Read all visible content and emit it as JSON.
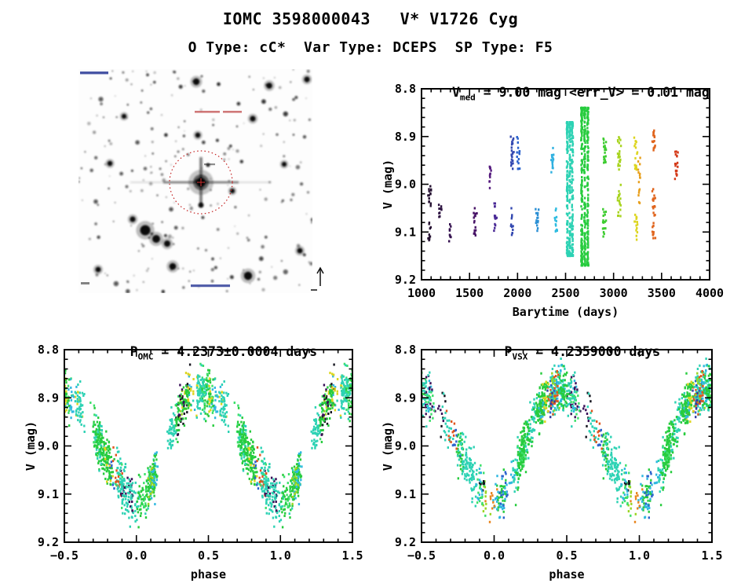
{
  "page": {
    "title": "IOMC 3598000043   V* V1726 Cyg",
    "subtitle": "O Type: cC*  Var Type: DCEPS  SP Type: F5"
  },
  "finder_chart": {
    "target_circle_color": "#c42222",
    "target_cross_color": "#d03030",
    "coord_annotation_color": "#b22222",
    "corner_annotation_color": "#1a2a8e"
  },
  "chart_data": [
    {
      "id": "lightcurve-vs-time",
      "type": "scatter",
      "title_parts": {
        "base": "V",
        "sub": "med",
        "rest": " = 9.00 mag <err_V> = 0.01 mag"
      },
      "xlabel": "Barytime (days)",
      "ylabel": "V (mag)",
      "xlim": [
        1000,
        4000
      ],
      "ylim": [
        8.8,
        9.2
      ],
      "y_axis_inverted_magnitudes": true,
      "xticks": {
        "values": [
          1000,
          1500,
          2000,
          2500,
          3000,
          3500,
          4000
        ],
        "labels": [
          "1000",
          "1500",
          "2000",
          "2500",
          "3000",
          "3500",
          "4000"
        ]
      },
      "yticks": {
        "values": [
          8.8,
          8.9,
          9.0,
          9.1,
          9.2
        ],
        "labels": [
          "8.8",
          "8.9",
          "9.0",
          "9.1",
          "9.2"
        ]
      },
      "minor_x": 100,
      "minor_y": 0.02,
      "seed": 5,
      "point_color_meaning": "observation epoch (rainbow: early=dark purple, late=red)",
      "clusters": [
        {
          "t": 1085,
          "w": 34,
          "color": "#241030",
          "segments": [
            [
              9.0,
              9.05,
              14
            ],
            [
              9.08,
              9.12,
              10
            ]
          ]
        },
        {
          "t": 1195,
          "w": 26,
          "color": "#2c1240",
          "segments": [
            [
              9.03,
              9.07,
              10
            ]
          ]
        },
        {
          "t": 1300,
          "w": 26,
          "color": "#33104e",
          "segments": [
            [
              9.08,
              9.12,
              10
            ]
          ]
        },
        {
          "t": 1560,
          "w": 30,
          "color": "#471366",
          "segments": [
            [
              9.05,
              9.11,
              16
            ]
          ]
        },
        {
          "t": 1715,
          "w": 28,
          "color": "#551a7e",
          "segments": [
            [
              8.96,
              9.01,
              12
            ]
          ]
        },
        {
          "t": 1768,
          "w": 26,
          "color": "#4a2a96",
          "segments": [
            [
              9.04,
              9.1,
              14
            ]
          ]
        },
        {
          "t": 1945,
          "w": 30,
          "color": "#3348b0",
          "segments": [
            [
              8.9,
              8.97,
              22
            ],
            [
              9.05,
              9.11,
              12
            ]
          ]
        },
        {
          "t": 2008,
          "w": 26,
          "color": "#2a62cc",
          "segments": [
            [
              8.9,
              8.97,
              16
            ]
          ]
        },
        {
          "t": 2205,
          "w": 28,
          "color": "#2b8fd4",
          "segments": [
            [
              9.05,
              9.1,
              14
            ]
          ]
        },
        {
          "t": 2360,
          "w": 26,
          "color": "#2fb0e0",
          "segments": [
            [
              8.92,
              8.98,
              16
            ]
          ]
        },
        {
          "t": 2402,
          "w": 24,
          "color": "#2fbce0",
          "segments": [
            [
              9.05,
              9.1,
              12
            ]
          ]
        },
        {
          "t": 2545,
          "w": 80,
          "color": "#2dd2b4",
          "segments": [
            [
              8.87,
              9.15,
              340
            ]
          ]
        },
        {
          "t": 2700,
          "w": 95,
          "color": "#27cc3e",
          "segments": [
            [
              8.84,
              9.17,
              440
            ]
          ]
        },
        {
          "t": 2905,
          "w": 32,
          "color": "#3ecc30",
          "segments": [
            [
              8.9,
              8.96,
              20
            ],
            [
              9.05,
              9.11,
              16
            ]
          ]
        },
        {
          "t": 3060,
          "w": 32,
          "color": "#a8d420",
          "segments": [
            [
              8.9,
              8.97,
              22
            ],
            [
              9.0,
              9.07,
              18
            ]
          ]
        },
        {
          "t": 3232,
          "w": 30,
          "color": "#ddd51e",
          "segments": [
            [
              8.9,
              8.97,
              18
            ],
            [
              9.06,
              9.12,
              14
            ]
          ]
        },
        {
          "t": 3270,
          "w": 22,
          "color": "#e8a01e",
          "segments": [
            [
              8.93,
              9.04,
              16
            ]
          ]
        },
        {
          "t": 3420,
          "w": 30,
          "color": "#e0641c",
          "segments": [
            [
              8.88,
              8.93,
              16
            ],
            [
              9.01,
              9.07,
              16
            ],
            [
              9.08,
              9.12,
              10
            ]
          ]
        },
        {
          "t": 3655,
          "w": 26,
          "color": "#d43b1a",
          "segments": [
            [
              8.93,
              8.99,
              18
            ]
          ]
        }
      ]
    },
    {
      "id": "phase-folded-omc",
      "type": "scatter",
      "title_parts": {
        "base": "P",
        "sub": "OMC",
        "rest": " = 4.2373±0.0004 days"
      },
      "xlabel": "phase",
      "ylabel": "V (mag)",
      "xlim": [
        -0.5,
        1.5
      ],
      "ylim": [
        8.8,
        9.2
      ],
      "y_axis_inverted_magnitudes": true,
      "xticks": {
        "values": [
          -0.5,
          0.0,
          0.5,
          1.0,
          1.5
        ],
        "labels": [
          "−0.5",
          "0.0",
          "0.5",
          "1.0",
          "1.5"
        ]
      },
      "yticks": {
        "values": [
          8.8,
          8.9,
          9.0,
          9.1,
          9.2
        ],
        "labels": [
          "8.8",
          "8.9",
          "9.0",
          "9.1",
          "9.2"
        ]
      },
      "minor_x": 0.1,
      "minor_y": 0.02,
      "seed": 11,
      "scatter_model": {
        "n_epochs": 46,
        "base_n": 15,
        "phase_jitter": 0.016,
        "noise": 0.023,
        "mean_curve": {
          "phase": [
            0.0,
            0.05,
            0.1,
            0.15,
            0.2,
            0.25,
            0.3,
            0.35,
            0.4,
            0.45,
            0.5,
            0.55,
            0.6,
            0.65,
            0.7,
            0.75,
            0.8,
            0.85,
            0.9,
            0.95,
            1.0
          ],
          "v": [
            9.115,
            9.105,
            9.08,
            9.05,
            9.01,
            8.965,
            8.925,
            8.9,
            8.888,
            8.885,
            8.89,
            8.9,
            8.915,
            8.94,
            8.97,
            9.0,
            9.03,
            9.06,
            9.085,
            9.105,
            9.115
          ]
        },
        "palette": [
          {
            "color": "#2dd2b4",
            "weight": 0.22,
            "n_scale": 2.2
          },
          {
            "color": "#27cc3e",
            "weight": 0.22,
            "n_scale": 2.4
          },
          {
            "color": "#3ce06a",
            "weight": 0.08,
            "n_scale": 1.2
          },
          {
            "color": "#2fb8e0",
            "weight": 0.1,
            "n_scale": 1.0
          },
          {
            "color": "#9ad522",
            "weight": 0.05,
            "n_scale": 0.8
          },
          {
            "color": "#ddd51e",
            "weight": 0.04,
            "n_scale": 0.8
          },
          {
            "color": "#e8851e",
            "weight": 0.05,
            "n_scale": 0.9
          },
          {
            "color": "#e0551c",
            "weight": 0.04,
            "n_scale": 0.9
          },
          {
            "color": "#d43b1a",
            "weight": 0.02,
            "n_scale": 0.6
          },
          {
            "color": "#2a62cc",
            "weight": 0.04,
            "n_scale": 0.7
          },
          {
            "color": "#333a9e",
            "weight": 0.03,
            "n_scale": 0.7
          },
          {
            "color": "#3a1058",
            "weight": 0.03,
            "n_scale": 0.7
          },
          {
            "color": "#14141e",
            "weight": 0.03,
            "n_scale": 0.6
          }
        ]
      }
    },
    {
      "id": "phase-folded-vsx",
      "type": "scatter",
      "title_parts": {
        "base": "P",
        "sub": "VSX",
        "rest": " = 4.2359000 days"
      },
      "xlabel": "phase",
      "ylabel": "V (mag)",
      "xlim": [
        -0.5,
        1.5
      ],
      "ylim": [
        8.8,
        9.2
      ],
      "y_axis_inverted_magnitudes": true,
      "xticks": {
        "values": [
          -0.5,
          0.0,
          0.5,
          1.0,
          1.5
        ],
        "labels": [
          "−0.5",
          "0.0",
          "0.5",
          "1.0",
          "1.5"
        ]
      },
      "yticks": {
        "values": [
          8.8,
          8.9,
          9.0,
          9.1,
          9.2
        ],
        "labels": [
          "8.8",
          "8.9",
          "9.0",
          "9.1",
          "9.2"
        ]
      },
      "minor_x": 0.1,
      "minor_y": 0.02,
      "seed": 29,
      "scatter_model": {
        "n_epochs": 46,
        "base_n": 15,
        "phase_jitter": 0.016,
        "noise": 0.023,
        "mean_curve": {
          "phase": [
            0.0,
            0.05,
            0.1,
            0.15,
            0.2,
            0.25,
            0.3,
            0.35,
            0.4,
            0.45,
            0.5,
            0.55,
            0.6,
            0.65,
            0.7,
            0.75,
            0.8,
            0.85,
            0.9,
            0.95,
            1.0
          ],
          "v": [
            9.115,
            9.105,
            9.08,
            9.05,
            9.01,
            8.965,
            8.925,
            8.9,
            8.888,
            8.885,
            8.89,
            8.9,
            8.915,
            8.94,
            8.97,
            9.0,
            9.03,
            9.06,
            9.085,
            9.105,
            9.115
          ]
        },
        "palette": [
          {
            "color": "#2dd2b4",
            "weight": 0.22,
            "n_scale": 2.2
          },
          {
            "color": "#27cc3e",
            "weight": 0.22,
            "n_scale": 2.4
          },
          {
            "color": "#3ce06a",
            "weight": 0.08,
            "n_scale": 1.2
          },
          {
            "color": "#2fb8e0",
            "weight": 0.1,
            "n_scale": 1.0
          },
          {
            "color": "#9ad522",
            "weight": 0.05,
            "n_scale": 0.8
          },
          {
            "color": "#ddd51e",
            "weight": 0.04,
            "n_scale": 0.8
          },
          {
            "color": "#e8851e",
            "weight": 0.05,
            "n_scale": 0.9
          },
          {
            "color": "#e0551c",
            "weight": 0.04,
            "n_scale": 0.9
          },
          {
            "color": "#d43b1a",
            "weight": 0.02,
            "n_scale": 0.6
          },
          {
            "color": "#2a62cc",
            "weight": 0.04,
            "n_scale": 0.7
          },
          {
            "color": "#333a9e",
            "weight": 0.03,
            "n_scale": 0.7
          },
          {
            "color": "#3a1058",
            "weight": 0.03,
            "n_scale": 0.7
          },
          {
            "color": "#14141e",
            "weight": 0.03,
            "n_scale": 0.6
          }
        ]
      }
    }
  ]
}
